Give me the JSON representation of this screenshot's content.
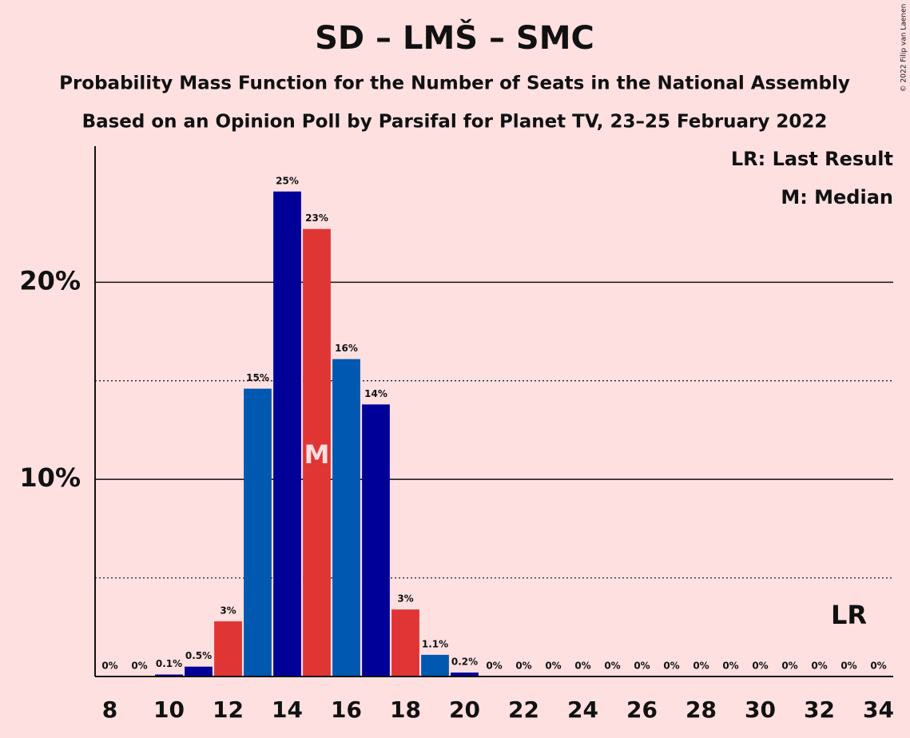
{
  "chart_data": {
    "type": "bar",
    "title": "SD – LMŠ – SMC",
    "subtitle": "Probability Mass Function for the Number of Seats in the National Assembly",
    "subtitle2": "Based on an Opinion Poll by Parsifal for Planet TV, 23–25 February 2022",
    "copyright": "© 2022 Filip van Laenen",
    "legend": [
      "LR: Last Result",
      "M: Median"
    ],
    "median_label": "M",
    "last_result_label": "LR",
    "median": 15,
    "last_result": 33,
    "x": [
      8,
      9,
      10,
      11,
      12,
      13,
      14,
      15,
      16,
      17,
      18,
      19,
      20,
      21,
      22,
      23,
      24,
      25,
      26,
      27,
      28,
      29,
      30,
      31,
      32,
      33,
      34
    ],
    "values": [
      0,
      0,
      0.1,
      0.5,
      2.8,
      14.6,
      24.6,
      22.7,
      16.1,
      13.8,
      3.4,
      1.1,
      0.2,
      0,
      0,
      0,
      0,
      0,
      0,
      0,
      0,
      0,
      0,
      0,
      0,
      0,
      0
    ],
    "value_labels": [
      "0%",
      "0%",
      "0.1%",
      "0.5%",
      "3%",
      "15%",
      "25%",
      "23%",
      "16%",
      "14%",
      "3%",
      "1.1%",
      "0.2%",
      "0%",
      "0%",
      "0%",
      "0%",
      "0%",
      "0%",
      "0%",
      "0%",
      "0%",
      "0%",
      "0%",
      "0%",
      "0%",
      "0%"
    ],
    "colors": [
      "#e03535",
      "#0058b0",
      "#000099",
      "#000099",
      "#e03535",
      "#0058b0",
      "#000099",
      "#e03535",
      "#0058b0",
      "#000099",
      "#e03535",
      "#0058b0",
      "#000099",
      "#e03535",
      "#0058b0",
      "#000099",
      "#e03535",
      "#0058b0",
      "#000099",
      "#e03535",
      "#0058b0",
      "#000099",
      "#e03535",
      "#0058b0",
      "#000099",
      "#e03535",
      "#0058b0"
    ],
    "xlim": [
      7.5,
      34.5
    ],
    "xticks": [
      8,
      10,
      12,
      14,
      16,
      18,
      20,
      22,
      24,
      26,
      28,
      30,
      32,
      34
    ],
    "ylim": [
      0,
      26.9
    ],
    "yticks": [
      {
        "value": 10,
        "label": "10%"
      },
      {
        "value": 20,
        "label": "20%"
      }
    ],
    "minor_yticks": [
      5,
      15
    ],
    "grid": true
  }
}
